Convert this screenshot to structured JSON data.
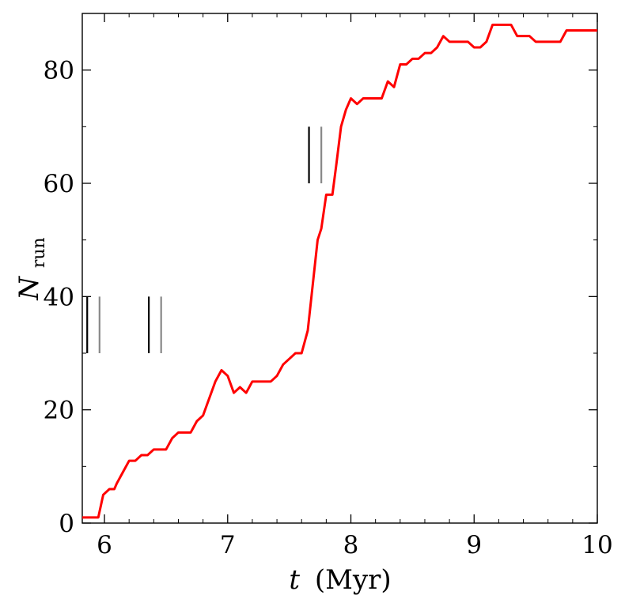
{
  "chart_data": {
    "type": "line",
    "title": "",
    "xlabel": "t",
    "xlabel_unit": "(Myr)",
    "ylabel": "N",
    "ylabel_sub": "run",
    "xlim": [
      5.82,
      10.0
    ],
    "ylim": [
      0,
      90
    ],
    "xticks": [
      6,
      7,
      8,
      9,
      10
    ],
    "yticks": [
      0,
      20,
      40,
      60,
      80
    ],
    "xtick_labels": [
      "6",
      "7",
      "8",
      "9",
      "10"
    ],
    "ytick_labels": [
      "0",
      "20",
      "40",
      "60",
      "80"
    ],
    "grid": false,
    "legend": "none",
    "series": [
      {
        "color": "#ff0000",
        "x": [
          5.82,
          5.95,
          5.99,
          6.04,
          6.08,
          6.1,
          6.15,
          6.2,
          6.25,
          6.3,
          6.35,
          6.4,
          6.45,
          6.5,
          6.55,
          6.6,
          6.65,
          6.7,
          6.75,
          6.8,
          6.85,
          6.9,
          6.95,
          7.0,
          7.05,
          7.1,
          7.15,
          7.2,
          7.25,
          7.3,
          7.35,
          7.4,
          7.45,
          7.5,
          7.55,
          7.6,
          7.65,
          7.7,
          7.73,
          7.76,
          7.8,
          7.85,
          7.88,
          7.92,
          7.96,
          8.0,
          8.05,
          8.1,
          8.15,
          8.2,
          8.25,
          8.3,
          8.35,
          8.4,
          8.45,
          8.5,
          8.55,
          8.6,
          8.65,
          8.7,
          8.75,
          8.8,
          8.85,
          8.9,
          8.95,
          9.0,
          9.05,
          9.1,
          9.15,
          9.2,
          9.25,
          9.3,
          9.35,
          9.4,
          9.45,
          9.5,
          9.55,
          9.6,
          9.65,
          9.7,
          9.75,
          9.8,
          9.85,
          9.9,
          9.95,
          10.0
        ],
        "y": [
          1,
          1,
          5,
          6,
          6,
          7,
          9,
          11,
          11,
          12,
          12,
          13,
          13,
          13,
          15,
          16,
          16,
          16,
          18,
          19,
          22,
          25,
          27,
          26,
          23,
          24,
          23,
          25,
          25,
          25,
          25,
          26,
          28,
          29,
          30,
          30,
          34,
          44,
          50,
          52,
          58,
          58,
          63,
          70,
          73,
          75,
          74,
          75,
          75,
          75,
          75,
          78,
          77,
          81,
          81,
          82,
          82,
          83,
          83,
          84,
          86,
          85,
          85,
          85,
          85,
          84,
          84,
          85,
          88,
          88,
          88,
          88,
          86,
          86,
          86,
          85,
          85,
          85,
          85,
          85,
          87,
          87,
          87,
          87,
          87,
          87
        ]
      }
    ],
    "markers": [
      {
        "x": 5.86,
        "y0": 30,
        "y1": 40,
        "color": "#000000"
      },
      {
        "x": 5.96,
        "y0": 30,
        "y1": 40,
        "color": "#888888"
      },
      {
        "x": 6.36,
        "y0": 30,
        "y1": 40,
        "color": "#000000"
      },
      {
        "x": 6.46,
        "y0": 30,
        "y1": 40,
        "color": "#888888"
      },
      {
        "x": 7.66,
        "y0": 60,
        "y1": 70,
        "color": "#000000"
      },
      {
        "x": 7.76,
        "y0": 60,
        "y1": 70,
        "color": "#888888"
      }
    ]
  }
}
